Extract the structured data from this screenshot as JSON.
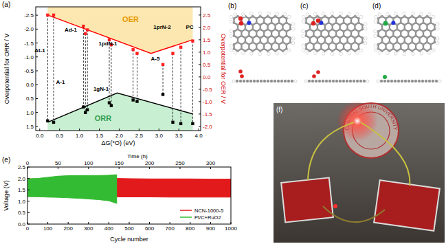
{
  "chart_data": [
    {
      "type": "scatter",
      "label": "(a)",
      "xlabel": "ΔG(*O)  (eV)",
      "ylabel": "Overpotential for ORR / V",
      "y2label": "Overpotential for OER / V",
      "xlim": [
        -0.1,
        4.05
      ],
      "xticks": [
        {
          "value": 0,
          "label": "0.0"
        },
        0.5,
        {
          "value": 1,
          "label": "1.0"
        },
        1.5,
        {
          "value": 2,
          "label": "2.0"
        },
        2.5,
        {
          "value": 3,
          "label": "3.0"
        },
        3.5,
        {
          "value": 4,
          "label": "4.0"
        }
      ],
      "ylim": [
        1.65,
        -2.8
      ],
      "yticks": [
        -2.5,
        {
          "value": -2,
          "label": "-2.0"
        },
        -1.5,
        {
          "value": -1,
          "label": "-1.0"
        },
        -0.5,
        {
          "value": 0,
          "label": "0.0"
        },
        0.5,
        {
          "value": 1,
          "label": "1.0"
        },
        1.5
      ],
      "y2lim": [
        -2.17,
        2.83
      ],
      "y2ticks": [
        2.5,
        {
          "value": 2,
          "label": "2.0"
        },
        1.5,
        {
          "value": 1,
          "label": "1.0"
        },
        0.5,
        {
          "value": 0,
          "label": "0.0"
        },
        -0.5,
        {
          "value": -1,
          "label": "-1.0"
        },
        -1.5,
        {
          "value": -2,
          "label": "-2.0"
        }
      ],
      "grid": false,
      "series": [
        {
          "type": "scatter",
          "axis": "y2",
          "color": "#ff2020",
          "marker": "square",
          "x": [
            0.2,
            0.35,
            1.1,
            1.15,
            1.2,
            1.75,
            1.8,
            2.35,
            2.45,
            3.1,
            3.35,
            3.55,
            3.85
          ],
          "values": [
            2.5,
            2.5,
            2.05,
            1.75,
            1.9,
            1.5,
            1.3,
            1.1,
            0.95,
            0.5,
            0.95,
            1.2,
            1.45
          ]
        },
        {
          "type": "scatter",
          "color": "#000000",
          "marker": "square",
          "x": [
            0.2,
            0.35,
            1.1,
            1.15,
            1.2,
            1.75,
            1.8,
            2.35,
            2.45,
            3.1,
            3.35,
            3.55,
            3.85
          ],
          "values": [
            1.3,
            1.35,
            0.8,
            1.0,
            0.9,
            0.65,
            0.75,
            0.55,
            0.6,
            0.35,
            1.35,
            1.4,
            1.4
          ]
        },
        {
          "name": "OER",
          "type": "line",
          "axis": "y2",
          "color": "#ff0000",
          "x": [
            0.2,
            2.8,
            3.85
          ],
          "values": [
            2.5,
            0.95,
            1.5
          ]
        },
        {
          "name": "ORR",
          "type": "line",
          "color": "#000000",
          "x": [
            0.2,
            1.95,
            3.85
          ],
          "values": [
            1.35,
            0.3,
            1.05
          ]
        }
      ],
      "annotations": [
        "At-1",
        "Ad-1",
        "A-1",
        "1gN-1",
        "1pdN-1",
        "A-5",
        "1prN-2",
        "PC"
      ]
    },
    {
      "type": "line",
      "label": "(e)",
      "xlabel": "Cycle number",
      "ylabel": "Voltage (V)",
      "x2label": "Time (h)",
      "xlim": [
        0,
        1000
      ],
      "xticks": [
        0,
        100,
        200,
        300,
        400,
        500,
        600,
        700,
        800,
        900,
        1000
      ],
      "x2lim": [
        0,
        333.3
      ],
      "x2ticks": [
        0,
        50,
        100,
        150,
        200,
        250,
        300
      ],
      "ylim": [
        0,
        2.5
      ],
      "yticks": [
        {
          "value": 0,
          "label": "0.0"
        },
        0.5,
        {
          "value": 1,
          "label": "1.0"
        },
        1.5,
        {
          "value": 2,
          "label": "2.0"
        },
        2.5
      ],
      "grid": false,
      "legend": "lower right",
      "series": [
        {
          "name": "NCN-1000-5",
          "color": "#e31a1c",
          "x": [
            0,
            100,
            200,
            300,
            400,
            440,
            500,
            600,
            700,
            800,
            900,
            1000
          ],
          "charge": [
            1.98,
            1.98,
            1.99,
            1.99,
            1.99,
            2.0,
            1.99,
            1.98,
            1.98,
            1.98,
            1.97,
            1.97
          ],
          "discharge": [
            1.22,
            1.2,
            1.2,
            1.2,
            1.2,
            1.19,
            1.19,
            1.19,
            1.18,
            1.18,
            1.18,
            1.18
          ]
        },
        {
          "name": "Pt/C+RuO2",
          "color": "#33bb33",
          "x": [
            0,
            50,
            100,
            150,
            200,
            250,
            300,
            350,
            400,
            430,
            440
          ],
          "charge": [
            1.98,
            2.0,
            2.05,
            2.1,
            2.12,
            2.13,
            2.13,
            2.13,
            2.14,
            2.16,
            2.16
          ],
          "discharge": [
            1.2,
            1.2,
            1.18,
            1.17,
            1.15,
            1.13,
            1.1,
            1.07,
            1.02,
            0.93,
            0.9
          ]
        }
      ]
    }
  ],
  "structures": {
    "labels": [
      "(b)",
      "(c)",
      "(d)"
    ]
  },
  "photo": {
    "label": "(f)",
    "logo_text": "CENTRAL SOUTH UNIVERSITY"
  }
}
